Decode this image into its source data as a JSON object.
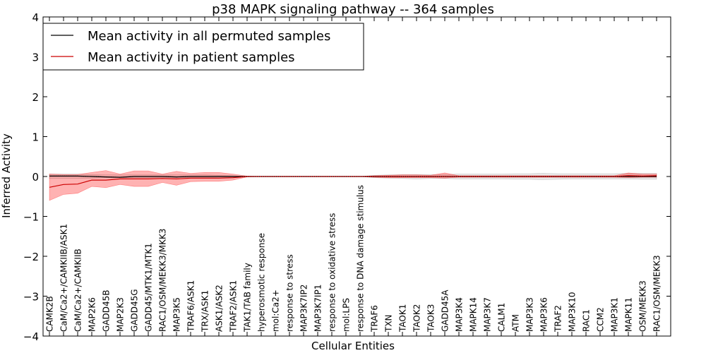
{
  "chart_data": {
    "type": "line",
    "title": "p38 MAPK signaling pathway -- 364 samples",
    "xlabel": "Cellular Entities",
    "ylabel": "Inferred Activity",
    "ylim": [
      -4,
      4
    ],
    "yticks": [
      "−4",
      "−3",
      "−2",
      "−1",
      "0",
      "1",
      "2",
      "3",
      "4"
    ],
    "yticks_values": [
      -4,
      -3,
      -2,
      -1,
      0,
      1,
      2,
      3,
      4
    ],
    "legend_position": "top-left",
    "categories": [
      "CAMK2B",
      "CaM/Ca2+/CAMKIIB/ASK1",
      "CaM/Ca2+/CAMKIIB",
      "MAP2K6",
      "GADD45B",
      "MAP2K3",
      "GADD45G",
      "GADD45/MTK1/MTK1",
      "RAC1/OSM/MEKK3/MKK3",
      "MAP3K5",
      "TRAF6/ASK1",
      "TRX/ASK1",
      "ASK1/ASK2",
      "TRAF2/ASK1",
      "TAK1/TAB family",
      "hyperosmotic response",
      "mol:Ca2+",
      "response to stress",
      "MAP3K7IP2",
      "MAP3K7IP1",
      "response to oxidative stress",
      "mol:LPS",
      "response to DNA damage stimulus",
      "TRAF6",
      "TXN",
      "TAOK1",
      "TAOK2",
      "TAOK3",
      "GADD45A",
      "MAP3K4",
      "MAPK14",
      "MAP3K7",
      "CALM1",
      "ATM",
      "MAP3K3",
      "MAP3K6",
      "TRAF2",
      "MAP3K10",
      "RAC1",
      "CCM2",
      "MAP3K1",
      "MAPK11",
      "OSM/MEKK3",
      "RAC1/OSM/MEKK3"
    ],
    "series": [
      {
        "name": "Mean activity in all permuted samples",
        "color": "#000000",
        "values": [
          0.01,
          0.01,
          0.01,
          0.0,
          -0.01,
          -0.02,
          0.0,
          0.0,
          0.0,
          -0.01,
          0.0,
          0.0,
          0.0,
          0.0,
          0.0,
          0.0,
          0.0,
          0.0,
          0.0,
          0.0,
          0.0,
          0.0,
          0.0,
          0.0,
          0.0,
          0.0,
          0.0,
          0.0,
          0.0,
          0.0,
          0.0,
          0.0,
          0.0,
          0.0,
          0.0,
          0.0,
          0.0,
          0.0,
          0.0,
          0.0,
          0.0,
          0.0,
          0.0,
          0.0
        ],
        "lower": [
          -0.05,
          -0.05,
          -0.05,
          -0.04,
          -0.03,
          -0.03,
          -0.03,
          -0.03,
          -0.03,
          -0.03,
          -0.03,
          -0.03,
          -0.02,
          -0.02,
          0.0,
          0.0,
          0.0,
          0.0,
          0.0,
          0.0,
          0.0,
          0.0,
          0.0,
          -0.03,
          -0.04,
          -0.05,
          -0.06,
          -0.05,
          -0.05,
          -0.06,
          -0.06,
          -0.06,
          -0.06,
          -0.07,
          -0.07,
          -0.08,
          -0.07,
          -0.06,
          -0.06,
          -0.06,
          -0.06,
          -0.06,
          -0.07,
          -0.07
        ],
        "upper": [
          0.06,
          0.06,
          0.06,
          0.05,
          0.04,
          0.04,
          0.04,
          0.04,
          0.04,
          0.04,
          0.04,
          0.04,
          0.03,
          0.02,
          0.0,
          0.0,
          0.0,
          0.0,
          0.0,
          0.0,
          0.0,
          0.0,
          0.0,
          0.03,
          0.04,
          0.05,
          0.05,
          0.05,
          0.05,
          0.06,
          0.06,
          0.06,
          0.06,
          0.07,
          0.07,
          0.08,
          0.07,
          0.07,
          0.07,
          0.07,
          0.07,
          0.08,
          0.08,
          0.08
        ]
      },
      {
        "name": "Mean activity in patient samples",
        "color": "#cc0000",
        "values": [
          -0.27,
          -0.2,
          -0.19,
          -0.09,
          -0.09,
          -0.06,
          -0.06,
          -0.06,
          -0.05,
          -0.06,
          -0.04,
          -0.04,
          -0.04,
          -0.03,
          0.0,
          0.0,
          0.0,
          0.0,
          0.0,
          0.0,
          0.0,
          0.0,
          0.0,
          0.0,
          0.0,
          0.0,
          0.0,
          0.0,
          0.0,
          0.0,
          0.0,
          0.0,
          0.0,
          0.0,
          0.0,
          0.0,
          0.0,
          0.0,
          0.0,
          0.0,
          0.0,
          0.02,
          0.01,
          0.02
        ],
        "lower": [
          -0.6,
          -0.45,
          -0.42,
          -0.25,
          -0.28,
          -0.2,
          -0.25,
          -0.25,
          -0.15,
          -0.22,
          -0.13,
          -0.12,
          -0.12,
          -0.09,
          -0.01,
          0.0,
          0.0,
          0.0,
          0.0,
          0.0,
          0.0,
          0.0,
          0.0,
          -0.02,
          -0.03,
          -0.03,
          -0.03,
          -0.03,
          -0.04,
          -0.02,
          -0.02,
          -0.02,
          -0.02,
          -0.02,
          -0.02,
          -0.02,
          -0.02,
          -0.02,
          -0.02,
          -0.02,
          -0.02,
          -0.03,
          -0.02,
          -0.02
        ],
        "upper": [
          0.06,
          0.05,
          0.05,
          0.1,
          0.15,
          0.06,
          0.14,
          0.14,
          0.06,
          0.13,
          0.08,
          0.1,
          0.1,
          0.06,
          0.01,
          0.0,
          0.0,
          0.0,
          0.0,
          0.0,
          0.0,
          0.0,
          0.0,
          0.02,
          0.03,
          0.04,
          0.04,
          0.03,
          0.09,
          0.02,
          0.02,
          0.02,
          0.02,
          0.02,
          0.02,
          0.02,
          0.02,
          0.02,
          0.02,
          0.02,
          0.02,
          0.09,
          0.06,
          0.06
        ]
      }
    ]
  }
}
